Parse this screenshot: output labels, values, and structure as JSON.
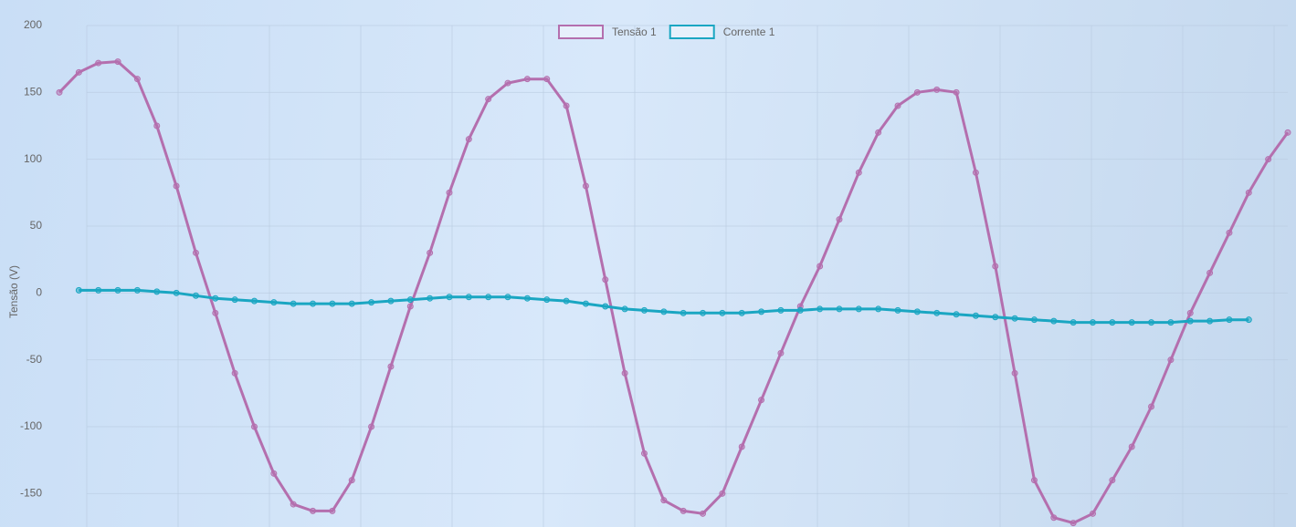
{
  "chart_data": {
    "type": "line",
    "y_label": "Tensão (V)",
    "ylim": [
      -175,
      200
    ],
    "yticks": [
      -150,
      -100,
      -50,
      0,
      50,
      100,
      150,
      200
    ],
    "grid": true,
    "legend": "top",
    "series": [
      {
        "name": "Tensão 1",
        "color": "#b46fae",
        "values": [
          150,
          165,
          172,
          173,
          160,
          125,
          80,
          30,
          -15,
          -60,
          -100,
          -135,
          -158,
          -163,
          -163,
          -140,
          -100,
          -55,
          -10,
          30,
          75,
          115,
          145,
          157,
          160,
          160,
          140,
          80,
          10,
          -60,
          -120,
          -155,
          -163,
          -165,
          -150,
          -115,
          -80,
          -45,
          -10,
          20,
          55,
          90,
          120,
          140,
          150,
          152,
          150,
          90,
          20,
          -60,
          -140,
          -168,
          -172,
          -165,
          -140,
          -115,
          -85,
          -50,
          -15,
          15,
          45,
          75,
          100,
          120
        ]
      },
      {
        "name": "Corrente 1",
        "color": "#1aa6c2",
        "values": [
          null,
          2,
          2,
          2,
          2,
          1,
          0,
          -2,
          -4,
          -5,
          -6,
          -7,
          -8,
          -8,
          -8,
          -8,
          -7,
          -6,
          -5,
          -4,
          -3,
          -3,
          -3,
          -3,
          -4,
          -5,
          -6,
          -8,
          -10,
          -12,
          -13,
          -14,
          -15,
          -15,
          -15,
          -15,
          -14,
          -13,
          -13,
          -12,
          -12,
          -12,
          -12,
          -13,
          -14,
          -15,
          -16,
          -17,
          -18,
          -19,
          -20,
          -21,
          -22,
          -22,
          -22,
          -22,
          -22,
          -22,
          -21,
          -21,
          -20,
          -20,
          null,
          null
        ]
      }
    ]
  }
}
